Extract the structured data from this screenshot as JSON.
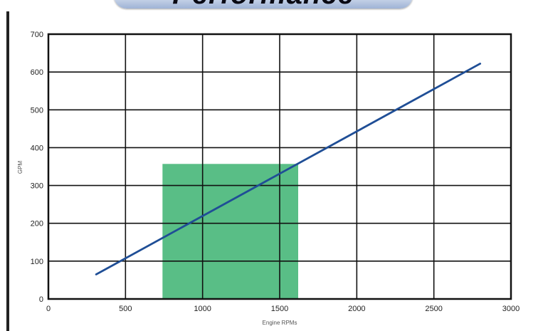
{
  "banner": {
    "title": "Performance"
  },
  "chart_data": {
    "type": "line",
    "title": "",
    "xlabel": "Engine RPMs",
    "ylabel": "GPM",
    "xlim": [
      0,
      3000
    ],
    "ylim": [
      0,
      700
    ],
    "xticks": [
      0,
      500,
      1000,
      1500,
      2000,
      2500,
      3000
    ],
    "yticks": [
      0,
      100,
      200,
      300,
      400,
      500,
      600,
      700
    ],
    "grid": true,
    "series": [
      {
        "x": [
          310,
          2800
        ],
        "y": [
          65,
          622
        ],
        "color": "#1f4e96"
      }
    ],
    "shaded_region": {
      "x": [
        740,
        1620
      ],
      "y": [
        0,
        357
      ],
      "color": "#3cb371"
    },
    "colors": {
      "line": "#1f4e96",
      "region": "#3cb371",
      "grid": "#111111"
    }
  }
}
